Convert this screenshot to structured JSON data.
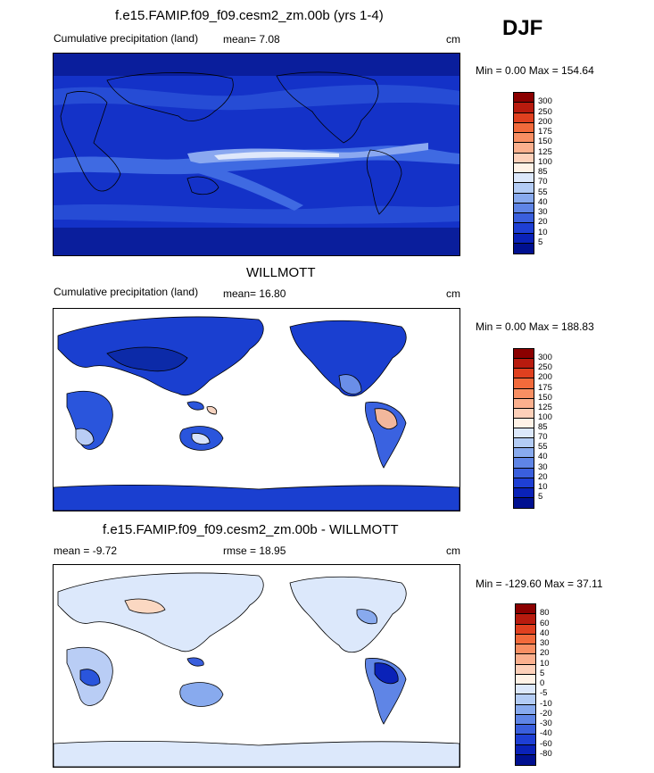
{
  "season": "DJF",
  "panels": [
    {
      "id": "model",
      "title": "f.e15.FAMIP.f09_f09.cesm2_zm.00b (yrs 1-4)",
      "left_text": "Cumulative precipitation (land)",
      "center_text": "mean=   7.08",
      "units": "cm",
      "minmax": "Min =   0.00 Max = 154.64",
      "colorbar": {
        "labels": [
          "300",
          "250",
          "200",
          "175",
          "150",
          "125",
          "100",
          "85",
          "70",
          "55",
          "40",
          "30",
          "20",
          "10",
          "5"
        ],
        "colors": [
          "#8b0000",
          "#b81b0e",
          "#e0401f",
          "#f26a3b",
          "#f88f63",
          "#fbb08e",
          "#fdd0b9",
          "#fff2e6",
          "#dce8fb",
          "#b3ccf5",
          "#88aaee",
          "#5f85e6",
          "#3a5fdd",
          "#1e3fd4",
          "#0a22b8",
          "#001090"
        ]
      }
    },
    {
      "id": "obs",
      "title": "WILLMOTT",
      "left_text": "Cumulative precipitation (land)",
      "center_text": "mean=  16.80",
      "units": "cm",
      "minmax": "Min =   0.00 Max = 188.83",
      "colorbar": {
        "labels": [
          "300",
          "250",
          "200",
          "175",
          "150",
          "125",
          "100",
          "85",
          "70",
          "55",
          "40",
          "30",
          "20",
          "10",
          "5"
        ],
        "colors": [
          "#8b0000",
          "#b81b0e",
          "#e0401f",
          "#f26a3b",
          "#f88f63",
          "#fbb08e",
          "#fdd0b9",
          "#fff2e6",
          "#dce8fb",
          "#b3ccf5",
          "#88aaee",
          "#5f85e6",
          "#3a5fdd",
          "#1e3fd4",
          "#0a22b8",
          "#001090"
        ]
      }
    },
    {
      "id": "diff",
      "title": "f.e15.FAMIP.f09_f09.cesm2_zm.00b - WILLMOTT",
      "left_text": "mean =  -9.72",
      "center_text": "rmse =  18.95",
      "units": "cm",
      "minmax": "Min = -129.60 Max =  37.11",
      "colorbar": {
        "labels": [
          "80",
          "60",
          "40",
          "30",
          "20",
          "10",
          "5",
          "0",
          "-5",
          "-10",
          "-20",
          "-30",
          "-40",
          "-60",
          "-80"
        ],
        "colors": [
          "#8b0000",
          "#b81b0e",
          "#e0401f",
          "#f26a3b",
          "#f88f63",
          "#fbb08e",
          "#fdd0b9",
          "#fff2e6",
          "#dce8fb",
          "#b3ccf5",
          "#88aaee",
          "#5f85e6",
          "#3a5fdd",
          "#1e3fd4",
          "#0a22b8",
          "#001090"
        ]
      }
    }
  ]
}
